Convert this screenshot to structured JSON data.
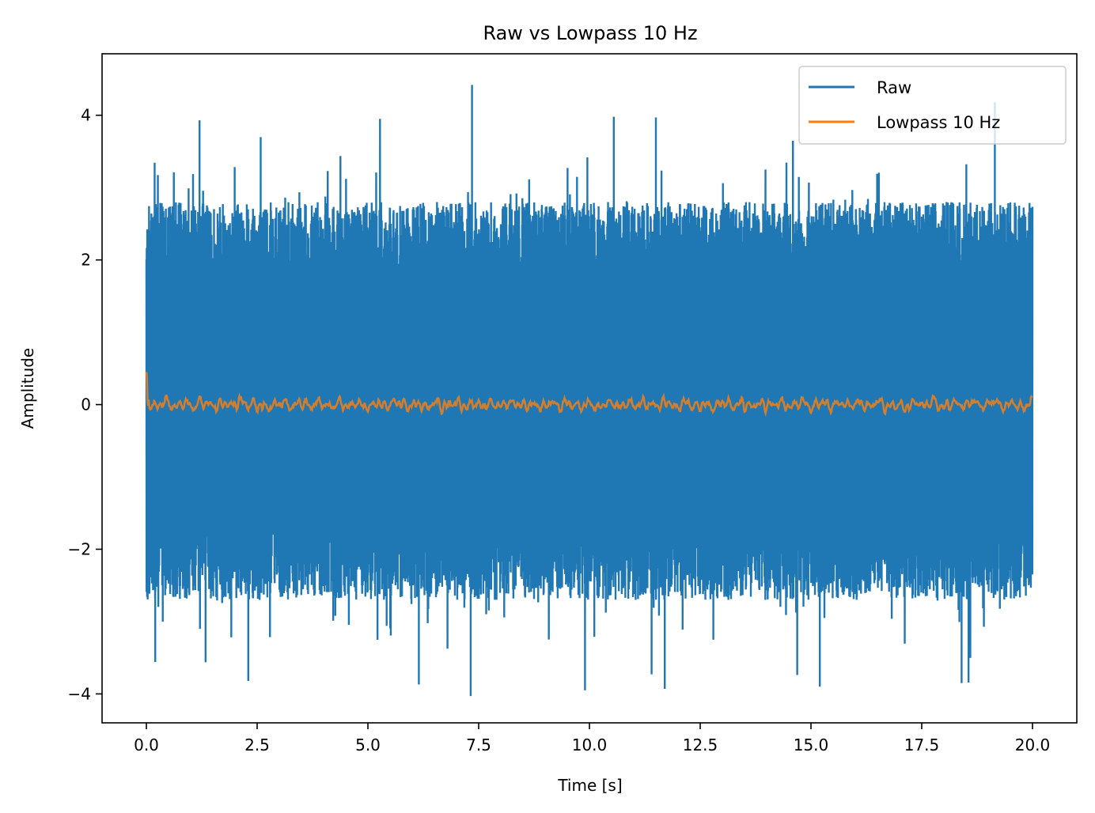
{
  "chart_data": {
    "type": "line",
    "title": "Raw vs Lowpass 10 Hz",
    "xlabel": "Time [s]",
    "ylabel": "Amplitude",
    "xlim": [
      -1.0,
      21.0
    ],
    "ylim": [
      -4.4,
      4.85
    ],
    "xticks": [
      0.0,
      2.5,
      5.0,
      7.5,
      10.0,
      12.5,
      15.0,
      17.5,
      20.0
    ],
    "xtick_labels": [
      "0.0",
      "2.5",
      "5.0",
      "7.5",
      "10.0",
      "12.5",
      "15.0",
      "17.5",
      "20.0"
    ],
    "yticks": [
      -4,
      -2,
      0,
      2,
      4
    ],
    "ytick_labels": [
      "−4",
      "−2",
      "0",
      "2",
      "4"
    ],
    "grid": false,
    "legend_position": "top-right",
    "series": [
      {
        "name": "Raw",
        "color": "#1f77b4",
        "description": "dense noise between roughly -2.7 and 2.8, time 0 to 20 s",
        "t_range": [
          0.0,
          20.0
        ],
        "envelope_typical": [
          -2.7,
          2.8
        ],
        "peak_max": 4.42,
        "peak_max_t": 7.35,
        "peak_min": -4.03,
        "peak_min_t": 7.32
      },
      {
        "name": "Lowpass 10 Hz",
        "color": "#ff7f0e",
        "description": "smoothed signal near 0, small oscillations",
        "t_range": [
          0.0,
          20.0
        ],
        "approx_range": [
          -0.2,
          0.45
        ]
      }
    ]
  }
}
